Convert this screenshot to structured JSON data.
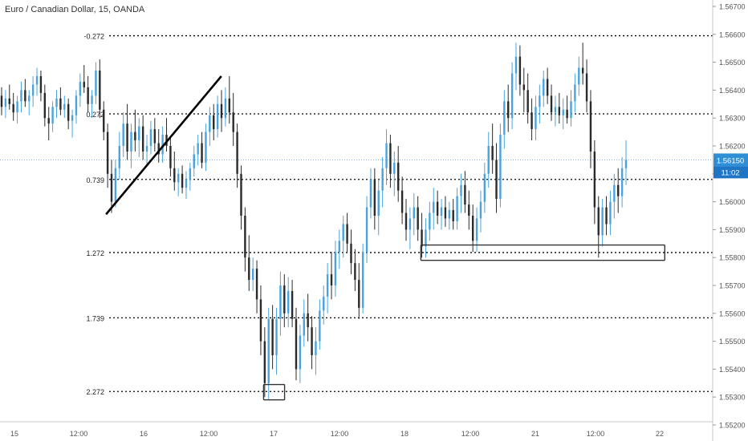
{
  "header": {
    "title": "Euro / Canadian Dollar, 15, OANDA"
  },
  "colors": {
    "up": "#4aa3df",
    "down": "#2a2a2a",
    "fib_line": "#000000",
    "price_line": "#5b9bd5",
    "axis_text": "#555555",
    "price_tag_bg": "#2f8fd6",
    "time_tag_bg": "#1e75c5"
  },
  "chart_data": {
    "type": "candlestick",
    "instrument": "Euro / Canadian Dollar",
    "interval": "15",
    "source": "OANDA",
    "ylim": [
      1.5516,
      1.5675
    ],
    "y_ticks": [
      "1.56700",
      "1.56600",
      "1.56500",
      "1.56400",
      "1.56300",
      "1.56200",
      "1.56100",
      "1.56000",
      "1.55900",
      "1.55800",
      "1.55700",
      "1.55600",
      "1.55500",
      "1.55400",
      "1.55300",
      "1.55200"
    ],
    "x_ticks": [
      "15",
      "12:00",
      "16",
      "12:00",
      "17",
      "12:00",
      "18",
      "12:00",
      "21",
      "12:00",
      "22"
    ],
    "fib_levels": [
      {
        "label": "-0.272",
        "price": 1.56595
      },
      {
        "label": "0.272",
        "price": 1.56315
      },
      {
        "label": "0.739",
        "price": 1.5608
      },
      {
        "label": "1.272",
        "price": 1.55818
      },
      {
        "label": "1.739",
        "price": 1.55584
      },
      {
        "label": "2.272",
        "price": 1.5532
      }
    ],
    "trend_line": {
      "start": {
        "time": "15 17:15",
        "price": 1.55955
      },
      "end": {
        "time": "16 14:15",
        "price": 1.5645
      }
    },
    "zones": [
      {
        "from": "16 22:00",
        "to": "17 02:00",
        "low": 1.5529,
        "high": 1.55345
      },
      {
        "from": "18 03:00",
        "to": "21 23:45",
        "low": 1.5579,
        "high": 1.55845
      }
    ],
    "current_price": "1.56150",
    "countdown": "11:02",
    "candles": [
      [
        1.5638,
        1.5641,
        1.5631,
        1.5634
      ],
      [
        1.5634,
        1.564,
        1.563,
        1.5637
      ],
      [
        1.5637,
        1.5642,
        1.5633,
        1.5635
      ],
      [
        1.5635,
        1.5639,
        1.5629,
        1.5632
      ],
      [
        1.5632,
        1.5638,
        1.5628,
        1.5636
      ],
      [
        1.5636,
        1.5643,
        1.5632,
        1.564
      ],
      [
        1.564,
        1.5644,
        1.5634,
        1.5636
      ],
      [
        1.5636,
        1.564,
        1.5631,
        1.5638
      ],
      [
        1.5638,
        1.5645,
        1.5634,
        1.5642
      ],
      [
        1.5642,
        1.5648,
        1.5638,
        1.5645
      ],
      [
        1.5645,
        1.5647,
        1.5636,
        1.5639
      ],
      [
        1.5639,
        1.5642,
        1.5627,
        1.563
      ],
      [
        1.563,
        1.5634,
        1.5622,
        1.5628
      ],
      [
        1.5628,
        1.5636,
        1.5625,
        1.5634
      ],
      [
        1.5634,
        1.564,
        1.563,
        1.5637
      ],
      [
        1.5637,
        1.5641,
        1.5631,
        1.5633
      ],
      [
        1.5633,
        1.5638,
        1.563,
        1.5635
      ],
      [
        1.5635,
        1.5637,
        1.5626,
        1.5629
      ],
      [
        1.5629,
        1.5633,
        1.5623,
        1.5631
      ],
      [
        1.5631,
        1.564,
        1.5628,
        1.5638
      ],
      [
        1.5638,
        1.5646,
        1.5634,
        1.5643
      ],
      [
        1.5643,
        1.5649,
        1.5639,
        1.5641
      ],
      [
        1.5641,
        1.5645,
        1.5632,
        1.5635
      ],
      [
        1.5635,
        1.564,
        1.563,
        1.5638
      ],
      [
        1.5638,
        1.565,
        1.5635,
        1.5647
      ],
      [
        1.5647,
        1.5651,
        1.563,
        1.5633
      ],
      [
        1.5633,
        1.5636,
        1.5622,
        1.5625
      ],
      [
        1.5625,
        1.5628,
        1.5605,
        1.561
      ],
      [
        1.561,
        1.5615,
        1.5596,
        1.56
      ],
      [
        1.56,
        1.5615,
        1.5598,
        1.5612
      ],
      [
        1.5612,
        1.5625,
        1.5608,
        1.562
      ],
      [
        1.562,
        1.5632,
        1.5616,
        1.5628
      ],
      [
        1.5628,
        1.5635,
        1.5615,
        1.5618
      ],
      [
        1.5618,
        1.5628,
        1.5612,
        1.5625
      ],
      [
        1.5625,
        1.5633,
        1.5618,
        1.5622
      ],
      [
        1.5622,
        1.563,
        1.5616,
        1.5627
      ],
      [
        1.5627,
        1.5631,
        1.5615,
        1.5618
      ],
      [
        1.5618,
        1.5624,
        1.5613,
        1.562
      ],
      [
        1.562,
        1.5629,
        1.5617,
        1.5626
      ],
      [
        1.5626,
        1.563,
        1.5618,
        1.5621
      ],
      [
        1.5621,
        1.5626,
        1.5614,
        1.5617
      ],
      [
        1.5617,
        1.5627,
        1.5614,
        1.5624
      ],
      [
        1.5624,
        1.563,
        1.5618,
        1.562
      ],
      [
        1.562,
        1.5623,
        1.5609,
        1.5612
      ],
      [
        1.5612,
        1.5618,
        1.5604,
        1.5607
      ],
      [
        1.5607,
        1.5612,
        1.5602,
        1.561
      ],
      [
        1.561,
        1.5613,
        1.5603,
        1.5605
      ],
      [
        1.5605,
        1.5611,
        1.5601,
        1.5608
      ],
      [
        1.5608,
        1.5614,
        1.5604,
        1.5612
      ],
      [
        1.5612,
        1.562,
        1.5609,
        1.5617
      ],
      [
        1.5617,
        1.5624,
        1.5613,
        1.5621
      ],
      [
        1.5621,
        1.5625,
        1.5612,
        1.5614
      ],
      [
        1.5614,
        1.5628,
        1.5611,
        1.5625
      ],
      [
        1.5625,
        1.5634,
        1.562,
        1.5631
      ],
      [
        1.5631,
        1.5635,
        1.5622,
        1.5626
      ],
      [
        1.5626,
        1.5638,
        1.5623,
        1.5635
      ],
      [
        1.5635,
        1.564,
        1.5625,
        1.563
      ],
      [
        1.563,
        1.5641,
        1.5627,
        1.5637
      ],
      [
        1.5637,
        1.5645,
        1.5628,
        1.5632
      ],
      [
        1.5632,
        1.5639,
        1.562,
        1.5625
      ],
      [
        1.5625,
        1.5628,
        1.5605,
        1.561
      ],
      [
        1.561,
        1.5613,
        1.559,
        1.5595
      ],
      [
        1.5595,
        1.5598,
        1.5575,
        1.558
      ],
      [
        1.558,
        1.5588,
        1.5568,
        1.5572
      ],
      [
        1.5572,
        1.558,
        1.5568,
        1.5576
      ],
      [
        1.5576,
        1.5579,
        1.556,
        1.5565
      ],
      [
        1.5565,
        1.557,
        1.5545,
        1.555
      ],
      [
        1.555,
        1.5555,
        1.553,
        1.5535
      ],
      [
        1.5535,
        1.5562,
        1.5529,
        1.5558
      ],
      [
        1.5558,
        1.5563,
        1.554,
        1.5545
      ],
      [
        1.5545,
        1.5562,
        1.5538,
        1.5558
      ],
      [
        1.5558,
        1.5575,
        1.5552,
        1.557
      ],
      [
        1.557,
        1.5574,
        1.5555,
        1.556
      ],
      [
        1.556,
        1.5573,
        1.5555,
        1.5568
      ],
      [
        1.5568,
        1.5572,
        1.5555,
        1.5558
      ],
      [
        1.5558,
        1.5562,
        1.5536,
        1.554
      ],
      [
        1.554,
        1.5556,
        1.5535,
        1.5552
      ],
      [
        1.5552,
        1.5565,
        1.5548,
        1.556
      ],
      [
        1.556,
        1.5567,
        1.555,
        1.5555
      ],
      [
        1.5555,
        1.5559,
        1.554,
        1.5545
      ],
      [
        1.5545,
        1.5555,
        1.5538,
        1.555
      ],
      [
        1.555,
        1.5565,
        1.5547,
        1.5561
      ],
      [
        1.5561,
        1.557,
        1.5556,
        1.5566
      ],
      [
        1.5566,
        1.5578,
        1.556,
        1.5574
      ],
      [
        1.5574,
        1.5582,
        1.5565,
        1.557
      ],
      [
        1.557,
        1.5586,
        1.5566,
        1.5582
      ],
      [
        1.5582,
        1.559,
        1.5576,
        1.5586
      ],
      [
        1.5586,
        1.5595,
        1.558,
        1.5592
      ],
      [
        1.5592,
        1.5596,
        1.5582,
        1.5585
      ],
      [
        1.5585,
        1.559,
        1.5574,
        1.5578
      ],
      [
        1.5578,
        1.5583,
        1.5568,
        1.5572
      ],
      [
        1.5572,
        1.5578,
        1.5558,
        1.5562
      ],
      [
        1.5562,
        1.5585,
        1.556,
        1.5582
      ],
      [
        1.5582,
        1.5602,
        1.5578,
        1.5598
      ],
      [
        1.5598,
        1.5612,
        1.5594,
        1.5608
      ],
      [
        1.5608,
        1.5612,
        1.559,
        1.5595
      ],
      [
        1.5595,
        1.5608,
        1.5588,
        1.5604
      ],
      [
        1.5604,
        1.5616,
        1.5598,
        1.5612
      ],
      [
        1.5612,
        1.5626,
        1.5606,
        1.5621
      ],
      [
        1.5621,
        1.5624,
        1.5605,
        1.561
      ],
      [
        1.561,
        1.5618,
        1.5602,
        1.5614
      ],
      [
        1.5614,
        1.562,
        1.56,
        1.5604
      ],
      [
        1.5604,
        1.5609,
        1.5592,
        1.5596
      ],
      [
        1.5596,
        1.5601,
        1.5586,
        1.559
      ],
      [
        1.559,
        1.5598,
        1.5583,
        1.5594
      ],
      [
        1.5594,
        1.5603,
        1.5588,
        1.5598
      ],
      [
        1.5598,
        1.5602,
        1.5586,
        1.559
      ],
      [
        1.559,
        1.5596,
        1.558,
        1.5584
      ],
      [
        1.5584,
        1.5594,
        1.558,
        1.559
      ],
      [
        1.559,
        1.56,
        1.5586,
        1.5596
      ],
      [
        1.5596,
        1.5605,
        1.559,
        1.56
      ],
      [
        1.56,
        1.5604,
        1.5592,
        1.5595
      ],
      [
        1.5595,
        1.5601,
        1.559,
        1.5598
      ],
      [
        1.5598,
        1.5602,
        1.5591,
        1.5594
      ],
      [
        1.5594,
        1.56,
        1.559,
        1.5597
      ],
      [
        1.5597,
        1.5601,
        1.559,
        1.5593
      ],
      [
        1.5593,
        1.5605,
        1.559,
        1.5602
      ],
      [
        1.5602,
        1.561,
        1.5596,
        1.5606
      ],
      [
        1.5606,
        1.5611,
        1.5596,
        1.5599
      ],
      [
        1.5599,
        1.5604,
        1.559,
        1.5595
      ],
      [
        1.5595,
        1.5599,
        1.5582,
        1.5586
      ],
      [
        1.5586,
        1.5598,
        1.5582,
        1.5594
      ],
      [
        1.5594,
        1.5604,
        1.5589,
        1.56
      ],
      [
        1.56,
        1.5614,
        1.5596,
        1.561
      ],
      [
        1.561,
        1.5625,
        1.5605,
        1.562
      ],
      [
        1.562,
        1.5628,
        1.561,
        1.5615
      ],
      [
        1.5615,
        1.5621,
        1.5596,
        1.5601
      ],
      [
        1.5601,
        1.5628,
        1.5598,
        1.5624
      ],
      [
        1.5624,
        1.564,
        1.5619,
        1.5636
      ],
      [
        1.5636,
        1.5642,
        1.5625,
        1.563
      ],
      [
        1.563,
        1.565,
        1.5626,
        1.5646
      ],
      [
        1.5646,
        1.5657,
        1.564,
        1.5652
      ],
      [
        1.5652,
        1.5656,
        1.5638,
        1.5642
      ],
      [
        1.5642,
        1.5648,
        1.5632,
        1.564
      ],
      [
        1.564,
        1.5646,
        1.5628,
        1.5632
      ],
      [
        1.5632,
        1.5637,
        1.5622,
        1.5626
      ],
      [
        1.5626,
        1.5638,
        1.5622,
        1.5634
      ],
      [
        1.5634,
        1.5642,
        1.5628,
        1.5638
      ],
      [
        1.5638,
        1.5647,
        1.5634,
        1.5644
      ],
      [
        1.5644,
        1.5648,
        1.5635,
        1.5638
      ],
      [
        1.5638,
        1.5642,
        1.5629,
        1.5632
      ],
      [
        1.5632,
        1.5638,
        1.5627,
        1.5634
      ],
      [
        1.5634,
        1.5639,
        1.5628,
        1.5631
      ],
      [
        1.5631,
        1.5637,
        1.5626,
        1.5633
      ],
      [
        1.5633,
        1.5638,
        1.5628,
        1.563
      ],
      [
        1.563,
        1.564,
        1.5627,
        1.5636
      ],
      [
        1.5636,
        1.5646,
        1.5632,
        1.5642
      ],
      [
        1.5642,
        1.5652,
        1.5638,
        1.5648
      ],
      [
        1.5648,
        1.5657,
        1.5642,
        1.5646
      ],
      [
        1.5646,
        1.5651,
        1.5632,
        1.5636
      ],
      [
        1.5636,
        1.564,
        1.5612,
        1.5618
      ],
      [
        1.5618,
        1.5622,
        1.5592,
        1.5598
      ],
      [
        1.5598,
        1.5602,
        1.558,
        1.5588
      ],
      [
        1.5588,
        1.5601,
        1.5584,
        1.5598
      ],
      [
        1.5598,
        1.5602,
        1.5588,
        1.5592
      ],
      [
        1.5592,
        1.5604,
        1.5588,
        1.56
      ],
      [
        1.56,
        1.561,
        1.5594,
        1.5606
      ],
      [
        1.5606,
        1.5612,
        1.5596,
        1.5602
      ],
      [
        1.5602,
        1.5616,
        1.5598,
        1.5612
      ],
      [
        1.5612,
        1.5622,
        1.5606,
        1.5615
      ]
    ]
  }
}
